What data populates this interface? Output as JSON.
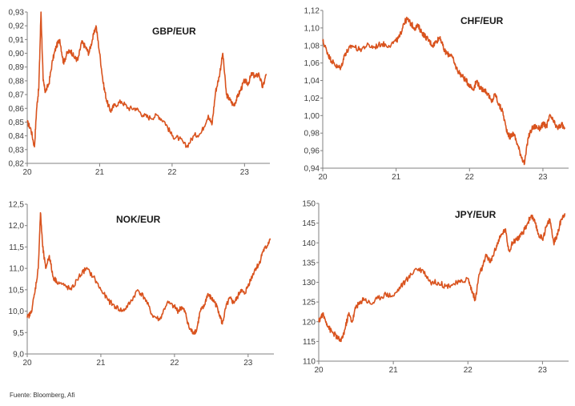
{
  "source": "Fuente: Bloomberg, Afi",
  "line_color": "#d9531e",
  "chart_data": [
    {
      "type": "line",
      "title": "GBP/EUR",
      "x_ticks": [
        "20",
        "21",
        "22",
        "23"
      ],
      "y_ticks": [
        "0,82",
        "0,83",
        "0,84",
        "0,85",
        "0,86",
        "0,87",
        "0,88",
        "0,89",
        "0,90",
        "0,91",
        "0,92",
        "0,93"
      ],
      "xlim": [
        2020.0,
        2023.35
      ],
      "ylim": [
        0.82,
        0.93
      ],
      "x": [
        2020.0,
        2020.05,
        2020.1,
        2020.13,
        2020.16,
        2020.19,
        2020.22,
        2020.25,
        2020.3,
        2020.35,
        2020.4,
        2020.45,
        2020.5,
        2020.55,
        2020.6,
        2020.65,
        2020.7,
        2020.75,
        2020.8,
        2020.85,
        2020.9,
        2020.95,
        2021.0,
        2021.05,
        2021.1,
        2021.15,
        2021.2,
        2021.3,
        2021.4,
        2021.5,
        2021.6,
        2021.7,
        2021.8,
        2021.9,
        2022.0,
        2022.1,
        2022.2,
        2022.3,
        2022.4,
        2022.5,
        2022.55,
        2022.6,
        2022.65,
        2022.7,
        2022.75,
        2022.8,
        2022.85,
        2022.9,
        2022.95,
        2023.0,
        2023.05,
        2023.1,
        2023.15,
        2023.2,
        2023.25,
        2023.3
      ],
      "y": [
        0.85,
        0.845,
        0.832,
        0.86,
        0.875,
        0.93,
        0.88,
        0.872,
        0.878,
        0.895,
        0.905,
        0.91,
        0.893,
        0.9,
        0.902,
        0.897,
        0.895,
        0.908,
        0.905,
        0.9,
        0.91,
        0.92,
        0.9,
        0.878,
        0.865,
        0.858,
        0.862,
        0.865,
        0.86,
        0.86,
        0.855,
        0.853,
        0.855,
        0.85,
        0.84,
        0.838,
        0.832,
        0.84,
        0.842,
        0.855,
        0.848,
        0.872,
        0.883,
        0.9,
        0.87,
        0.866,
        0.862,
        0.868,
        0.874,
        0.88,
        0.878,
        0.885,
        0.883,
        0.885,
        0.875,
        0.885
      ]
    },
    {
      "type": "line",
      "title": "CHF/EUR",
      "x_ticks": [
        "20",
        "21",
        "22",
        "23"
      ],
      "y_ticks": [
        "0,94",
        "0,96",
        "0,98",
        "1,00",
        "1,02",
        "1,04",
        "1,06",
        "1,08",
        "1,10",
        "1,12"
      ],
      "xlim": [
        2020.0,
        2023.35
      ],
      "ylim": [
        0.94,
        1.12
      ],
      "x": [
        2020.0,
        2020.05,
        2020.1,
        2020.15,
        2020.2,
        2020.25,
        2020.3,
        2020.35,
        2020.4,
        2020.5,
        2020.6,
        2020.7,
        2020.8,
        2020.9,
        2021.0,
        2021.05,
        2021.1,
        2021.15,
        2021.2,
        2021.25,
        2021.3,
        2021.35,
        2021.4,
        2021.45,
        2021.5,
        2021.55,
        2021.6,
        2021.65,
        2021.7,
        2021.75,
        2021.8,
        2021.85,
        2021.9,
        2021.95,
        2022.0,
        2022.05,
        2022.1,
        2022.15,
        2022.2,
        2022.25,
        2022.3,
        2022.35,
        2022.4,
        2022.45,
        2022.5,
        2022.55,
        2022.6,
        2022.65,
        2022.7,
        2022.75,
        2022.8,
        2022.85,
        2022.9,
        2022.95,
        2023.0,
        2023.05,
        2023.1,
        2023.15,
        2023.2,
        2023.25,
        2023.3
      ],
      "y": [
        1.085,
        1.075,
        1.065,
        1.06,
        1.055,
        1.055,
        1.07,
        1.075,
        1.08,
        1.075,
        1.08,
        1.078,
        1.082,
        1.08,
        1.085,
        1.09,
        1.105,
        1.11,
        1.105,
        1.1,
        1.102,
        1.095,
        1.09,
        1.085,
        1.08,
        1.085,
        1.09,
        1.075,
        1.07,
        1.07,
        1.058,
        1.05,
        1.045,
        1.04,
        1.035,
        1.03,
        1.04,
        1.03,
        1.03,
        1.025,
        1.015,
        1.025,
        1.012,
        1.005,
        0.985,
        0.975,
        0.98,
        0.968,
        0.955,
        0.945,
        0.975,
        0.985,
        0.988,
        0.985,
        0.99,
        0.988,
        1.0,
        0.992,
        0.985,
        0.99,
        0.985
      ]
    },
    {
      "type": "line",
      "title": "NOK/EUR",
      "x_ticks": [
        "20",
        "21",
        "22",
        "23"
      ],
      "y_ticks": [
        "9,0",
        "9,5",
        "10,0",
        "10,5",
        "11,0",
        "11,5",
        "12,0",
        "12,5"
      ],
      "xlim": [
        2020.0,
        2023.35
      ],
      "ylim": [
        9.0,
        12.5
      ],
      "x": [
        2020.0,
        2020.05,
        2020.1,
        2020.15,
        2020.18,
        2020.21,
        2020.25,
        2020.3,
        2020.35,
        2020.4,
        2020.5,
        2020.6,
        2020.7,
        2020.8,
        2020.9,
        2021.0,
        2021.1,
        2021.2,
        2021.3,
        2021.4,
        2021.5,
        2021.6,
        2021.7,
        2021.8,
        2021.9,
        2022.0,
        2022.05,
        2022.1,
        2022.15,
        2022.2,
        2022.25,
        2022.3,
        2022.35,
        2022.4,
        2022.45,
        2022.5,
        2022.55,
        2022.6,
        2022.65,
        2022.7,
        2022.75,
        2022.8,
        2022.85,
        2022.9,
        2022.95,
        2023.0,
        2023.05,
        2023.1,
        2023.15,
        2023.2,
        2023.25,
        2023.3
      ],
      "y": [
        9.85,
        9.95,
        10.4,
        11.0,
        12.3,
        11.5,
        11.0,
        11.3,
        10.8,
        10.7,
        10.6,
        10.5,
        10.8,
        11.0,
        10.8,
        10.5,
        10.25,
        10.1,
        10.0,
        10.2,
        10.5,
        10.3,
        9.9,
        9.8,
        10.2,
        10.1,
        10.0,
        10.1,
        9.95,
        9.6,
        9.5,
        9.55,
        10.0,
        10.1,
        10.4,
        10.3,
        10.2,
        10.0,
        9.7,
        10.1,
        10.3,
        10.2,
        10.3,
        10.5,
        10.4,
        10.6,
        10.8,
        11.0,
        11.1,
        11.4,
        11.5,
        11.7
      ]
    },
    {
      "type": "line",
      "title": "JPY/EUR",
      "x_ticks": [
        "20",
        "21",
        "22",
        "23"
      ],
      "y_ticks": [
        "110",
        "115",
        "120",
        "125",
        "130",
        "135",
        "140",
        "145",
        "150"
      ],
      "xlim": [
        2020.0,
        2023.35
      ],
      "ylim": [
        110,
        150
      ],
      "x": [
        2020.0,
        2020.05,
        2020.1,
        2020.15,
        2020.2,
        2020.25,
        2020.3,
        2020.35,
        2020.4,
        2020.45,
        2020.5,
        2020.55,
        2020.6,
        2020.7,
        2020.8,
        2020.9,
        2021.0,
        2021.1,
        2021.2,
        2021.3,
        2021.4,
        2021.5,
        2021.6,
        2021.7,
        2021.8,
        2021.9,
        2022.0,
        2022.05,
        2022.1,
        2022.15,
        2022.2,
        2022.25,
        2022.3,
        2022.35,
        2022.4,
        2022.45,
        2022.5,
        2022.55,
        2022.6,
        2022.65,
        2022.7,
        2022.75,
        2022.8,
        2022.85,
        2022.9,
        2022.95,
        2023.0,
        2023.05,
        2023.1,
        2023.15,
        2023.2,
        2023.25,
        2023.3
      ],
      "y": [
        120,
        122,
        120,
        118,
        117,
        116,
        115,
        118,
        122,
        120,
        124,
        124.5,
        126,
        124.5,
        126,
        127,
        126.5,
        129,
        131,
        133.5,
        133,
        130,
        130,
        129,
        129.5,
        130,
        131,
        128,
        125.5,
        132,
        134,
        137,
        135,
        137.5,
        140,
        142,
        143.5,
        138,
        140,
        141,
        141.5,
        143,
        145,
        147,
        145,
        142,
        141,
        144,
        146,
        140,
        142,
        146,
        147.5
      ]
    }
  ]
}
